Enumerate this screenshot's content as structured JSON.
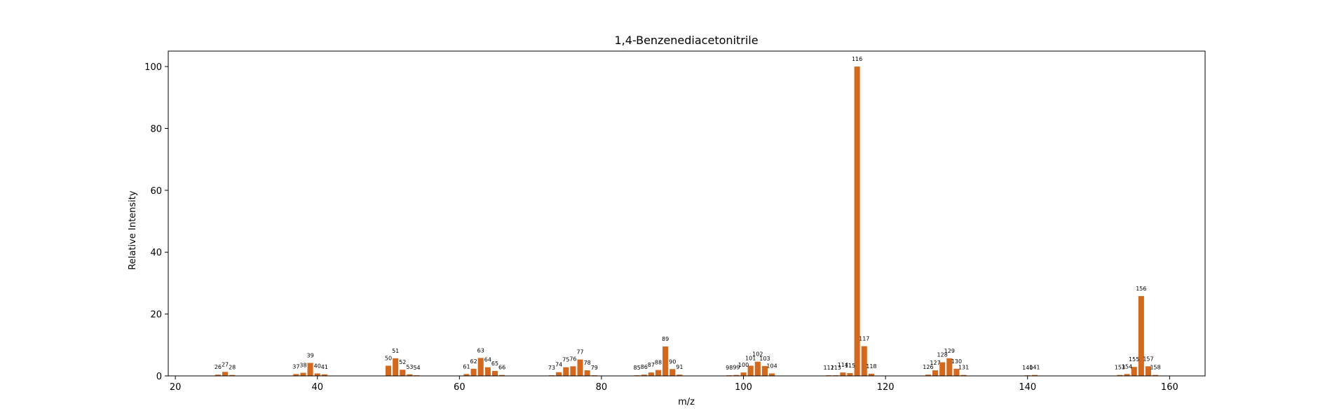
{
  "chart_data": {
    "type": "bar",
    "title": "1,4-Benzenediacetonitrile",
    "xlabel": "m/z",
    "ylabel": "Relative Intensity",
    "xlim": [
      19,
      165
    ],
    "ylim": [
      0,
      105
    ],
    "xticks": [
      20,
      40,
      60,
      80,
      100,
      120,
      140,
      160
    ],
    "yticks": [
      0,
      20,
      40,
      60,
      80,
      100
    ],
    "bar_color": "#d2691e",
    "grid": false,
    "legend": "none",
    "peaks": [
      {
        "mz": 26,
        "intensity": 0.4
      },
      {
        "mz": 27,
        "intensity": 1.3
      },
      {
        "mz": 28,
        "intensity": 0.3
      },
      {
        "mz": 37,
        "intensity": 0.6
      },
      {
        "mz": 38,
        "intensity": 1.0
      },
      {
        "mz": 39,
        "intensity": 4.2
      },
      {
        "mz": 40,
        "intensity": 0.8
      },
      {
        "mz": 41,
        "intensity": 0.5
      },
      {
        "mz": 50,
        "intensity": 3.3
      },
      {
        "mz": 51,
        "intensity": 5.7
      },
      {
        "mz": 52,
        "intensity": 2.0
      },
      {
        "mz": 53,
        "intensity": 0.5
      },
      {
        "mz": 54,
        "intensity": 0.2
      },
      {
        "mz": 61,
        "intensity": 0.6
      },
      {
        "mz": 62,
        "intensity": 2.3
      },
      {
        "mz": 63,
        "intensity": 5.8
      },
      {
        "mz": 64,
        "intensity": 2.8
      },
      {
        "mz": 65,
        "intensity": 1.6
      },
      {
        "mz": 66,
        "intensity": 0.3
      },
      {
        "mz": 73,
        "intensity": 0.2
      },
      {
        "mz": 74,
        "intensity": 1.2
      },
      {
        "mz": 75,
        "intensity": 2.8
      },
      {
        "mz": 76,
        "intensity": 3.1
      },
      {
        "mz": 77,
        "intensity": 5.3
      },
      {
        "mz": 78,
        "intensity": 1.8
      },
      {
        "mz": 79,
        "intensity": 0.2
      },
      {
        "mz": 85,
        "intensity": 0.2
      },
      {
        "mz": 86,
        "intensity": 0.4
      },
      {
        "mz": 87,
        "intensity": 1.1
      },
      {
        "mz": 88,
        "intensity": 1.9
      },
      {
        "mz": 89,
        "intensity": 9.5
      },
      {
        "mz": 90,
        "intensity": 2.2
      },
      {
        "mz": 91,
        "intensity": 0.4
      },
      {
        "mz": 98,
        "intensity": 0.2
      },
      {
        "mz": 99,
        "intensity": 0.3
      },
      {
        "mz": 100,
        "intensity": 1.1
      },
      {
        "mz": 101,
        "intensity": 3.3
      },
      {
        "mz": 102,
        "intensity": 4.6
      },
      {
        "mz": 103,
        "intensity": 3.2
      },
      {
        "mz": 104,
        "intensity": 0.8
      },
      {
        "mz": 112,
        "intensity": 0.2
      },
      {
        "mz": 113,
        "intensity": 0.2
      },
      {
        "mz": 114,
        "intensity": 1.1
      },
      {
        "mz": 115,
        "intensity": 0.9
      },
      {
        "mz": 116,
        "intensity": 100
      },
      {
        "mz": 117,
        "intensity": 9.6
      },
      {
        "mz": 118,
        "intensity": 0.7
      },
      {
        "mz": 126,
        "intensity": 0.4
      },
      {
        "mz": 127,
        "intensity": 1.8
      },
      {
        "mz": 128,
        "intensity": 4.4
      },
      {
        "mz": 129,
        "intensity": 5.7
      },
      {
        "mz": 130,
        "intensity": 2.3
      },
      {
        "mz": 131,
        "intensity": 0.3
      },
      {
        "mz": 140,
        "intensity": 0.2
      },
      {
        "mz": 141,
        "intensity": 0.3
      },
      {
        "mz": 153,
        "intensity": 0.3
      },
      {
        "mz": 154,
        "intensity": 0.6
      },
      {
        "mz": 155,
        "intensity": 2.9
      },
      {
        "mz": 156,
        "intensity": 25.8
      },
      {
        "mz": 157,
        "intensity": 3.1
      },
      {
        "mz": 158,
        "intensity": 0.3
      }
    ]
  }
}
